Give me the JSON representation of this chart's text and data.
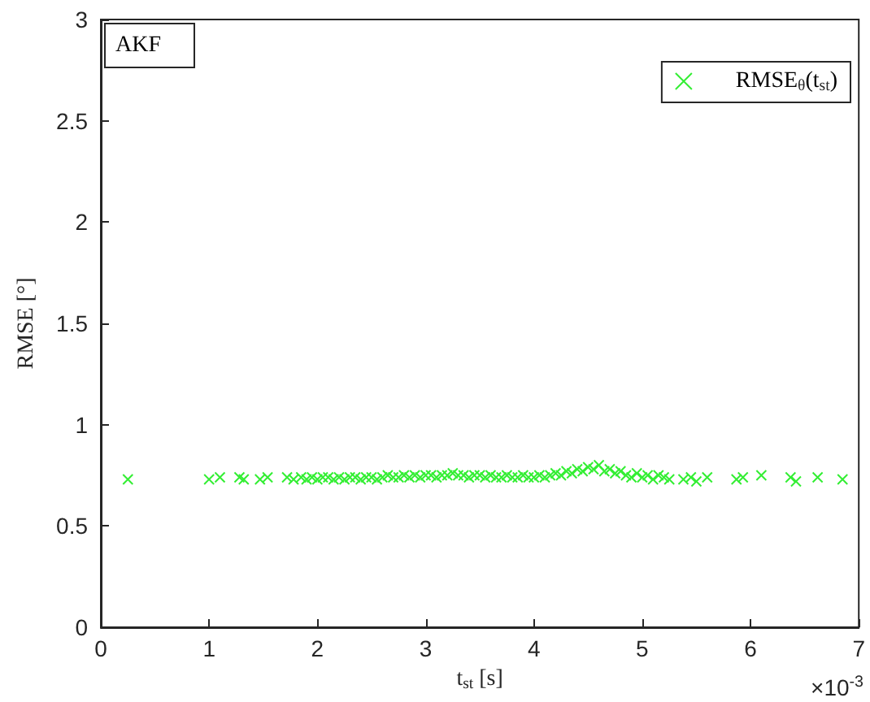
{
  "chart_data": {
    "type": "scatter",
    "xlabel": "t$_{st}$ [s]",
    "ylabel": "RMSE [°]",
    "annotations": [
      "AKF",
      "×10$^{-3}$"
    ],
    "xlim": [
      0,
      7
    ],
    "xticks": [
      0,
      1,
      2,
      3,
      4,
      5,
      6,
      7
    ],
    "ylim": [
      0,
      3
    ],
    "yticks": [
      0,
      0.5,
      1,
      1.5,
      2,
      2.5,
      3
    ],
    "grid": false,
    "legend": "top right",
    "marker": "cross",
    "series": [
      {
        "name": "RMSE$_{θ}$(t$_{st}$)",
        "color": "#33ee33",
        "x": [
          0.25,
          1.0,
          1.1,
          1.28,
          1.32,
          1.47,
          1.54,
          1.72,
          1.78,
          1.85,
          1.9,
          1.95,
          2.0,
          2.05,
          2.1,
          2.15,
          2.2,
          2.25,
          2.3,
          2.35,
          2.4,
          2.45,
          2.5,
          2.55,
          2.6,
          2.65,
          2.7,
          2.75,
          2.8,
          2.85,
          2.9,
          2.95,
          3.0,
          3.05,
          3.1,
          3.15,
          3.2,
          3.25,
          3.3,
          3.35,
          3.4,
          3.45,
          3.5,
          3.55,
          3.6,
          3.65,
          3.7,
          3.75,
          3.8,
          3.85,
          3.9,
          3.95,
          4.0,
          4.05,
          4.1,
          4.15,
          4.2,
          4.25,
          4.3,
          4.35,
          4.4,
          4.45,
          4.5,
          4.55,
          4.6,
          4.65,
          4.7,
          4.75,
          4.8,
          4.85,
          4.9,
          4.95,
          5.0,
          5.05,
          5.1,
          5.15,
          5.2,
          5.25,
          5.38,
          5.45,
          5.5,
          5.6,
          5.87,
          5.93,
          6.1,
          6.37,
          6.42,
          6.62,
          6.85
        ],
        "values": [
          0.73,
          0.73,
          0.74,
          0.74,
          0.73,
          0.73,
          0.74,
          0.74,
          0.73,
          0.74,
          0.73,
          0.74,
          0.73,
          0.74,
          0.74,
          0.73,
          0.74,
          0.73,
          0.74,
          0.74,
          0.73,
          0.74,
          0.74,
          0.73,
          0.74,
          0.75,
          0.74,
          0.74,
          0.75,
          0.74,
          0.75,
          0.74,
          0.75,
          0.75,
          0.74,
          0.75,
          0.75,
          0.76,
          0.75,
          0.75,
          0.74,
          0.75,
          0.75,
          0.74,
          0.75,
          0.74,
          0.74,
          0.75,
          0.74,
          0.74,
          0.75,
          0.74,
          0.74,
          0.75,
          0.74,
          0.75,
          0.76,
          0.75,
          0.77,
          0.76,
          0.78,
          0.77,
          0.79,
          0.78,
          0.8,
          0.77,
          0.78,
          0.76,
          0.77,
          0.75,
          0.74,
          0.76,
          0.74,
          0.75,
          0.73,
          0.75,
          0.74,
          0.73,
          0.73,
          0.74,
          0.72,
          0.74,
          0.73,
          0.74,
          0.75,
          0.74,
          0.72,
          0.74,
          0.73
        ]
      }
    ]
  }
}
